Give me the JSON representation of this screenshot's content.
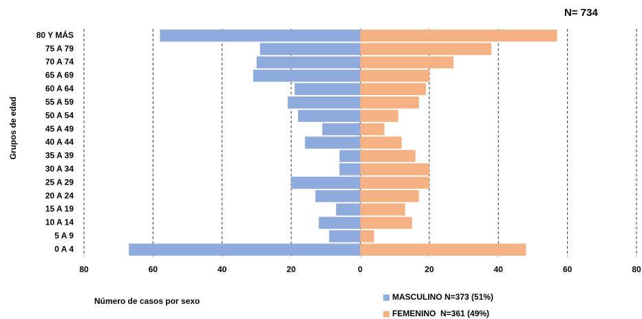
{
  "chart_data": {
    "type": "pyramid",
    "annotation": "N= 734",
    "y_label": "Grupos de edad",
    "x_label": "Número de casos por sexo",
    "categories": [
      "80 Y MÁS",
      "75 A 79",
      "70 A 74",
      "65 A 69",
      "60 A 64",
      "55 A 59",
      "50 A 54",
      "45 A 49",
      "40 A 44",
      "35 A 39",
      "30 A 34",
      "25 A 29",
      "20 A 24",
      "15 A 19",
      "10 A 14",
      "5 A 9",
      "0 A 4"
    ],
    "series": [
      {
        "name": "MASCULINO N=373 (51%)",
        "color": "#8faadc",
        "side": "left",
        "values": [
          58,
          29,
          30,
          31,
          19,
          21,
          18,
          11,
          16,
          6,
          6,
          20,
          13,
          7,
          12,
          9,
          67
        ]
      },
      {
        "name": "FEMENINO  N=361 (49%)",
        "color": "#f4b183",
        "side": "right",
        "values": [
          57,
          38,
          27,
          20,
          19,
          17,
          11,
          7,
          12,
          16,
          20,
          20,
          17,
          13,
          15,
          4,
          48
        ]
      }
    ],
    "xlim": [
      -80,
      80
    ],
    "xticks": [
      {
        "value": -80,
        "label": "80"
      },
      {
        "value": -60,
        "label": "60"
      },
      {
        "value": -40,
        "label": "40"
      },
      {
        "value": -20,
        "label": "20"
      },
      0,
      20,
      40,
      60,
      80
    ],
    "grid": true
  }
}
